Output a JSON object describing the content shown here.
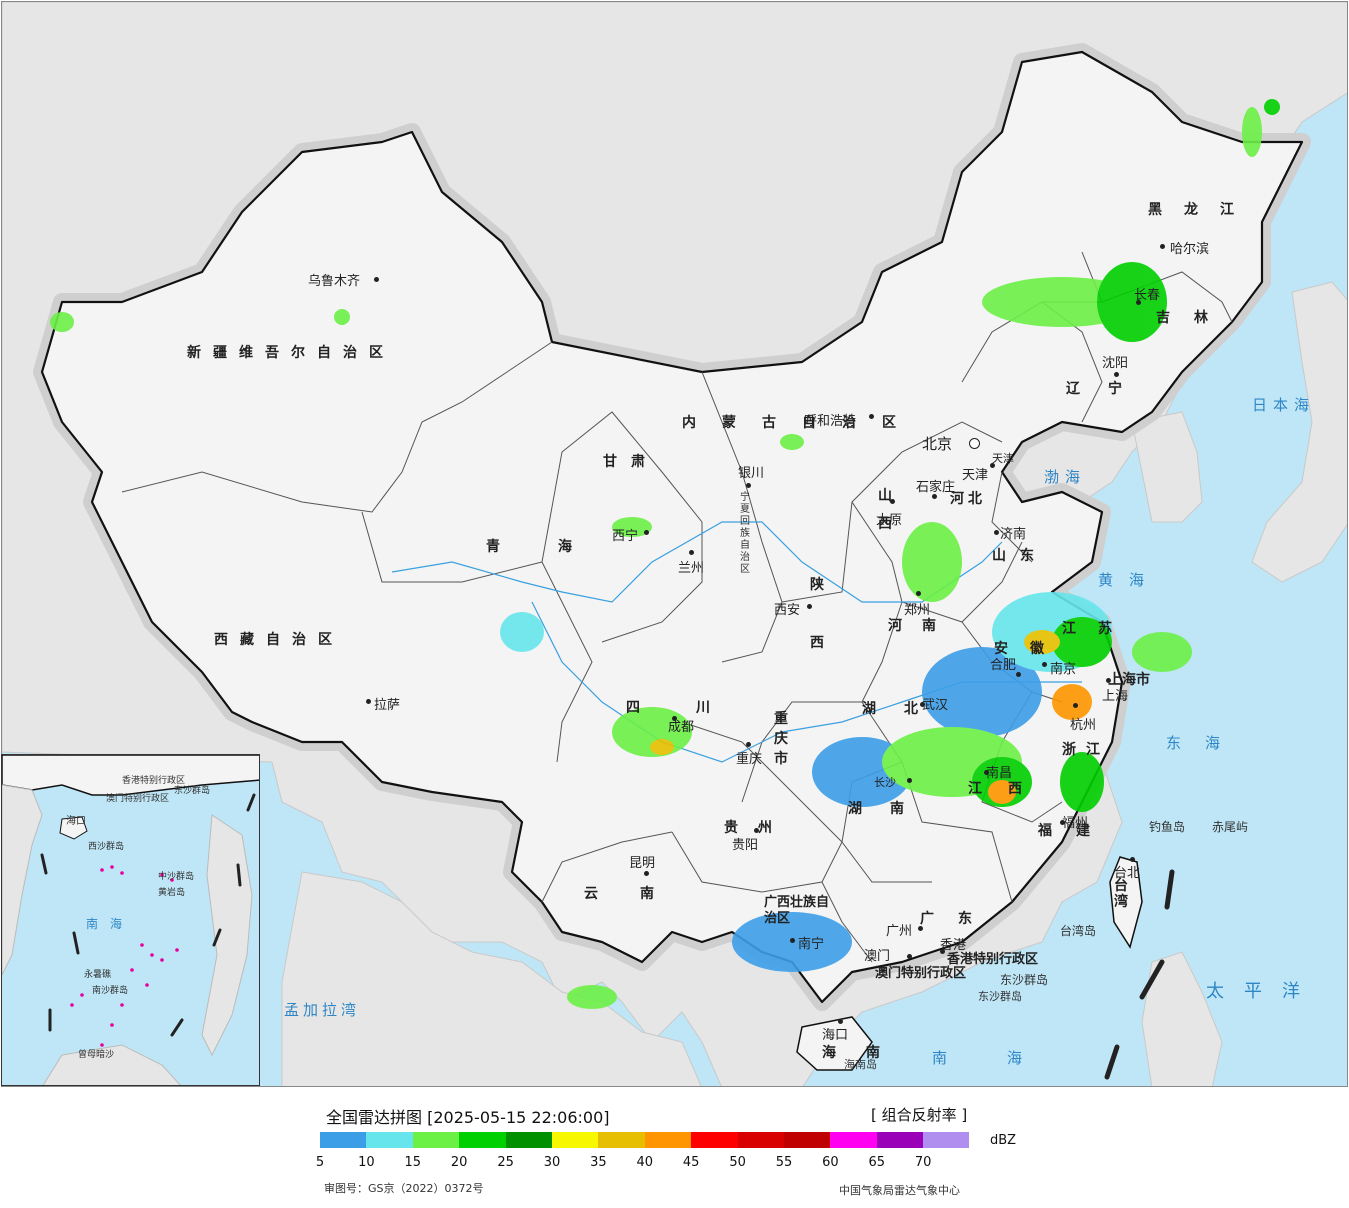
{
  "map": {
    "sea_color": "#bfe6f7",
    "foreign_land_color": "#e6e6e6",
    "china_land_color": "#f4f4f4",
    "provinces": [
      {
        "name": "新疆维吾尔自治区"
      },
      {
        "name": "西藏自治区"
      },
      {
        "name": "青海"
      },
      {
        "name": "甘肃"
      },
      {
        "name": "四川"
      },
      {
        "name": "云南"
      },
      {
        "name": "贵州"
      },
      {
        "name": "广西壮族自治区"
      },
      {
        "name": "广东"
      },
      {
        "name": "湖南"
      },
      {
        "name": "湖北"
      },
      {
        "name": "江西"
      },
      {
        "name": "福建"
      },
      {
        "name": "浙江"
      },
      {
        "name": "安徽"
      },
      {
        "name": "江苏"
      },
      {
        "name": "山东"
      },
      {
        "name": "河南"
      },
      {
        "name": "河北"
      },
      {
        "name": "山西"
      },
      {
        "name": "陕西"
      },
      {
        "name": "重庆市"
      },
      {
        "name": "内蒙古自治区"
      },
      {
        "name": "辽宁"
      },
      {
        "name": "吉林"
      },
      {
        "name": "黑龙江"
      },
      {
        "name": "宁夏回族自治区"
      },
      {
        "name": "台湾"
      },
      {
        "name": "海南"
      },
      {
        "name": "上海市"
      },
      {
        "name": "天津"
      },
      {
        "name": "香港特别行政区"
      },
      {
        "name": "澳门特别行政区"
      }
    ],
    "cities": [
      {
        "name": "乌鲁木齐"
      },
      {
        "name": "拉萨"
      },
      {
        "name": "西宁"
      },
      {
        "name": "兰州"
      },
      {
        "name": "银川"
      },
      {
        "name": "呼和浩特"
      },
      {
        "name": "北京"
      },
      {
        "name": "天津"
      },
      {
        "name": "石家庄"
      },
      {
        "name": "太原"
      },
      {
        "name": "济南"
      },
      {
        "name": "郑州"
      },
      {
        "name": "西安"
      },
      {
        "name": "成都"
      },
      {
        "name": "重庆"
      },
      {
        "name": "贵阳"
      },
      {
        "name": "昆明"
      },
      {
        "name": "南宁"
      },
      {
        "name": "广州"
      },
      {
        "name": "澳门"
      },
      {
        "name": "香港"
      },
      {
        "name": "海口"
      },
      {
        "name": "长沙"
      },
      {
        "name": "武汉"
      },
      {
        "name": "南昌"
      },
      {
        "name": "福州"
      },
      {
        "name": "杭州"
      },
      {
        "name": "上海"
      },
      {
        "name": "南京"
      },
      {
        "name": "合肥"
      },
      {
        "name": "台北"
      },
      {
        "name": "沈阳"
      },
      {
        "name": "长春"
      },
      {
        "name": "哈尔滨"
      }
    ],
    "seas": [
      {
        "name": "日本海"
      },
      {
        "name": "渤海"
      },
      {
        "name": "黄海"
      },
      {
        "name": "东海"
      },
      {
        "name": "太平洋"
      },
      {
        "name": "南海"
      },
      {
        "name": "孟加拉湾"
      }
    ],
    "islands": [
      {
        "name": "钓鱼岛"
      },
      {
        "name": "赤尾屿"
      },
      {
        "name": "台湾岛"
      },
      {
        "name": "东沙群岛"
      },
      {
        "name": "海南岛"
      }
    ],
    "inset": {
      "labels": [
        {
          "name": "南海"
        },
        {
          "name": "海口"
        },
        {
          "name": "西沙群岛"
        },
        {
          "name": "中沙群岛"
        },
        {
          "name": "南沙群岛"
        },
        {
          "name": "黄岩岛"
        },
        {
          "name": "永暑礁"
        },
        {
          "name": "曾母暗沙"
        },
        {
          "name": "香港特别行政区"
        },
        {
          "name": "澳门特别行政区"
        },
        {
          "name": "东沙群岛"
        }
      ]
    }
  },
  "legend": {
    "title": "全国雷达拼图 [2025-05-15 22:06:00]",
    "product": "[ 组合反射率 ]",
    "unit": "dBZ",
    "colors": [
      "#3d9ee8",
      "#66e6ec",
      "#6bf046",
      "#00cf00",
      "#009000",
      "#f7f700",
      "#e6c000",
      "#ff9500",
      "#ff0000",
      "#d90000",
      "#c00000",
      "#ff00f0",
      "#9a00b8",
      "#b08ef0"
    ],
    "ticks": [
      "5",
      "10",
      "15",
      "20",
      "25",
      "30",
      "35",
      "40",
      "45",
      "50",
      "55",
      "60",
      "65",
      "70"
    ],
    "approval": "审图号：GS京（2022）0372号",
    "source": "中国气象局雷达气象中心"
  }
}
